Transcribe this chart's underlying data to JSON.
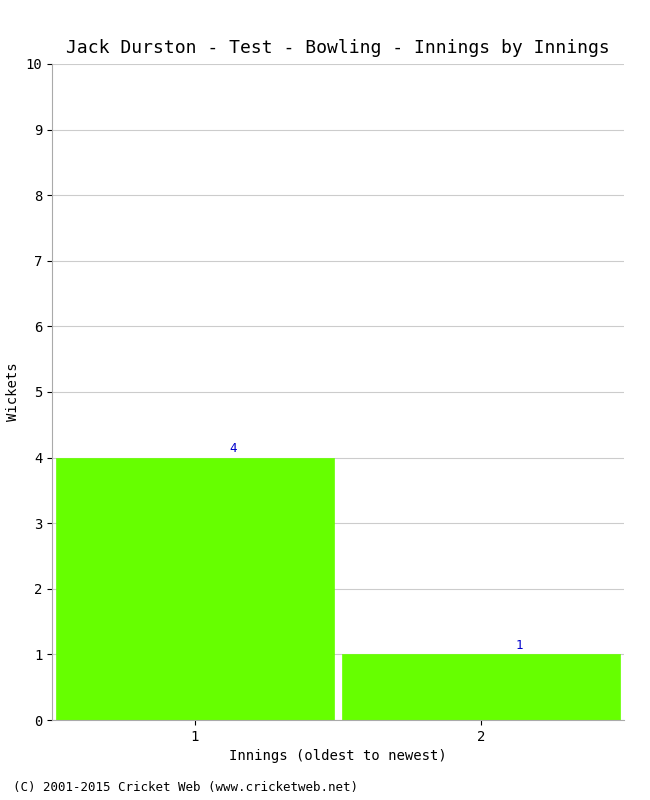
{
  "title": "Jack Durston - Test - Bowling - Innings by Innings",
  "xlabel": "Innings (oldest to newest)",
  "ylabel": "Wickets",
  "categories": [
    1,
    2
  ],
  "values": [
    4,
    1
  ],
  "bar_color": "#66ff00",
  "bar_edgecolor": "#66ff00",
  "ylim": [
    0,
    10
  ],
  "yticks": [
    0,
    1,
    2,
    3,
    4,
    5,
    6,
    7,
    8,
    9,
    10
  ],
  "xticks": [
    1,
    2
  ],
  "annotation_color": "#0000cc",
  "annotation_fontsize": 9,
  "grid_color": "#cccccc",
  "background_color": "#ffffff",
  "footer_text": "(C) 2001-2015 Cricket Web (www.cricketweb.net)",
  "title_fontsize": 13,
  "label_fontsize": 10,
  "tick_fontsize": 10,
  "footer_fontsize": 9,
  "xlim": [
    0.5,
    2.5
  ],
  "bar_width": 0.97
}
